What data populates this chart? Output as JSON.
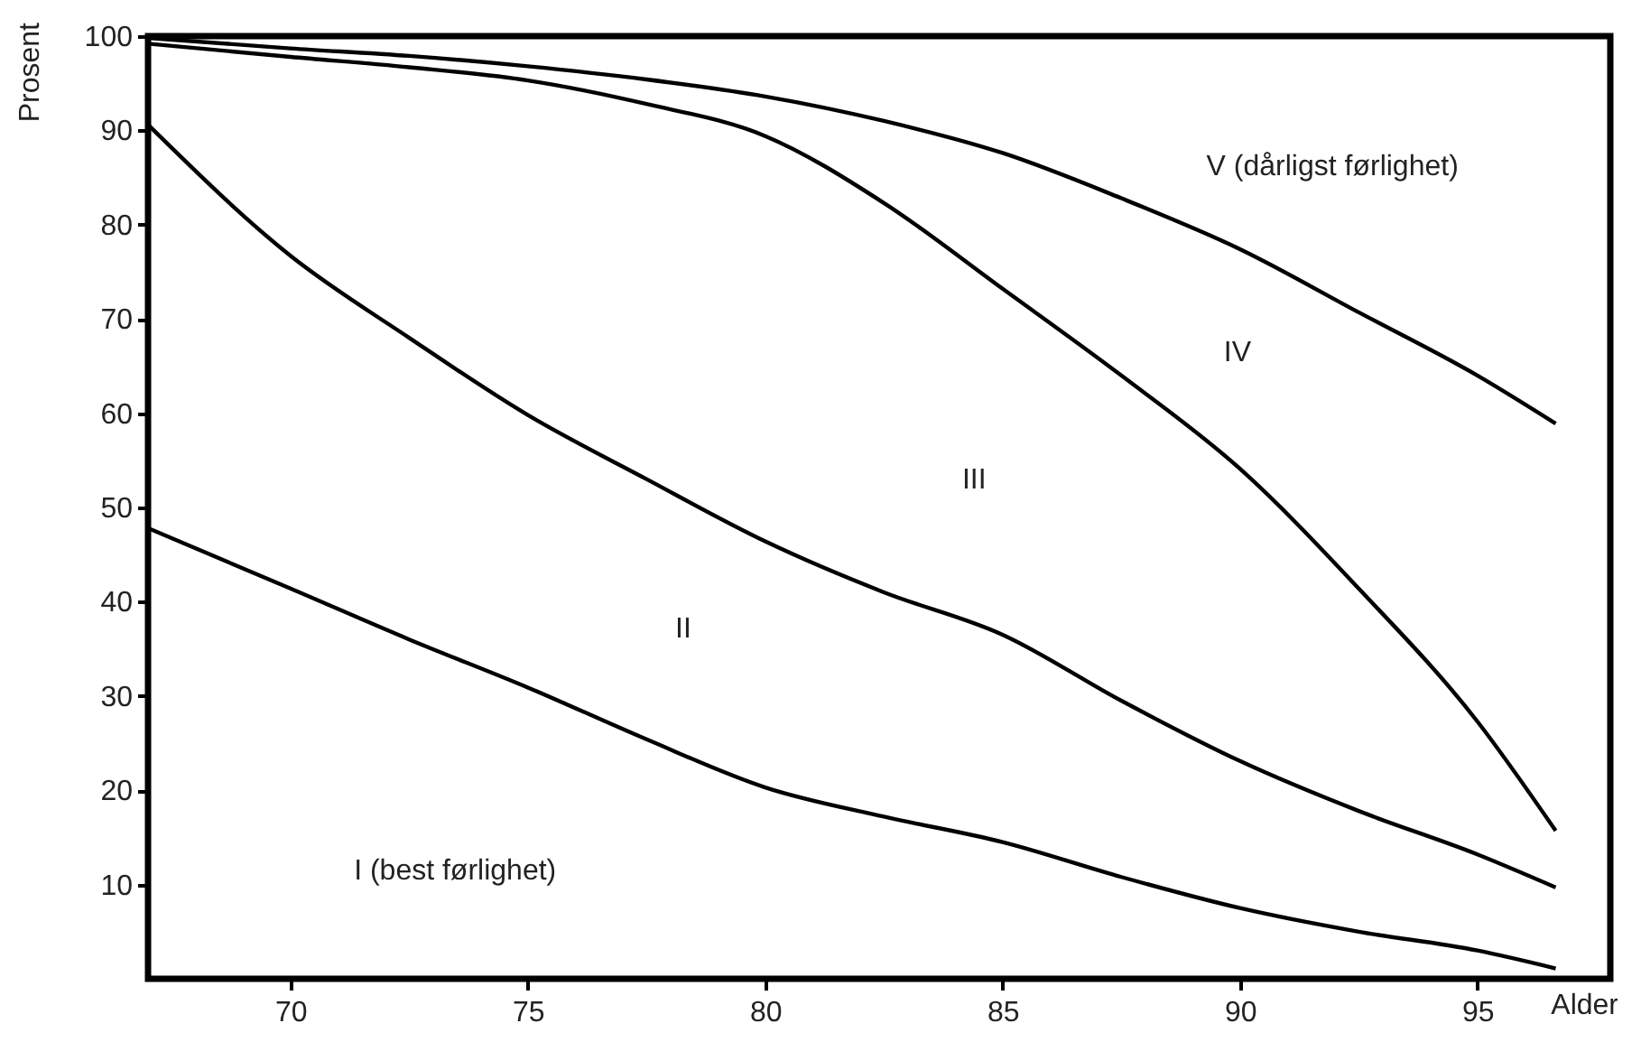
{
  "chart_data": {
    "type": "line",
    "xlabel": "Alder",
    "ylabel": "Prosent",
    "xlim": [
      67,
      97.8
    ],
    "ylim": [
      0,
      100
    ],
    "xticks": [
      70,
      75,
      80,
      85,
      90,
      95
    ],
    "yticks": [
      10,
      20,
      30,
      40,
      50,
      60,
      70,
      80,
      90,
      100
    ],
    "series": [
      {
        "color": "#000000",
        "x": [
          67,
          70,
          72.5,
          75,
          77.5,
          80,
          82.5,
          85,
          87.5,
          90,
          92.5,
          95,
          96.65
        ],
        "values": [
          47.8,
          41.4,
          36,
          30.9,
          25.4,
          20.3,
          17.2,
          14.5,
          10.8,
          7.5,
          5.0,
          3.0,
          1.1
        ]
      },
      {
        "color": "#000000",
        "x": [
          67,
          70,
          72.5,
          75,
          77.5,
          80,
          82.5,
          85,
          87.5,
          90,
          92.5,
          95,
          96.65
        ],
        "values": [
          90.6,
          76.7,
          68,
          59.8,
          53,
          46.4,
          41,
          36.5,
          29.5,
          23.1,
          17.8,
          13.2,
          9.7
        ]
      },
      {
        "color": "#000000",
        "x": [
          67,
          70,
          72.5,
          75,
          77.5,
          80,
          82.5,
          85,
          87.5,
          90,
          92.5,
          95,
          96.65
        ],
        "values": [
          99.2,
          97.8,
          96.7,
          95.3,
          92.8,
          89.4,
          82.3,
          73.2,
          64.0,
          54.1,
          41.4,
          27.3,
          15.7
        ]
      },
      {
        "color": "#000000",
        "x": [
          67,
          70,
          72.5,
          75,
          77.5,
          80,
          82.5,
          85,
          87.5,
          90,
          92.5,
          95,
          96.65
        ],
        "values": [
          99.8,
          98.7,
          97.9,
          96.8,
          95.4,
          93.6,
          91.0,
          87.6,
          82.8,
          77.4,
          70.7,
          64.0,
          58.9
        ]
      }
    ],
    "annotations": [
      "I (best førlighet)",
      "II",
      "III",
      "IV",
      "V (dårligst førlighet)"
    ]
  }
}
